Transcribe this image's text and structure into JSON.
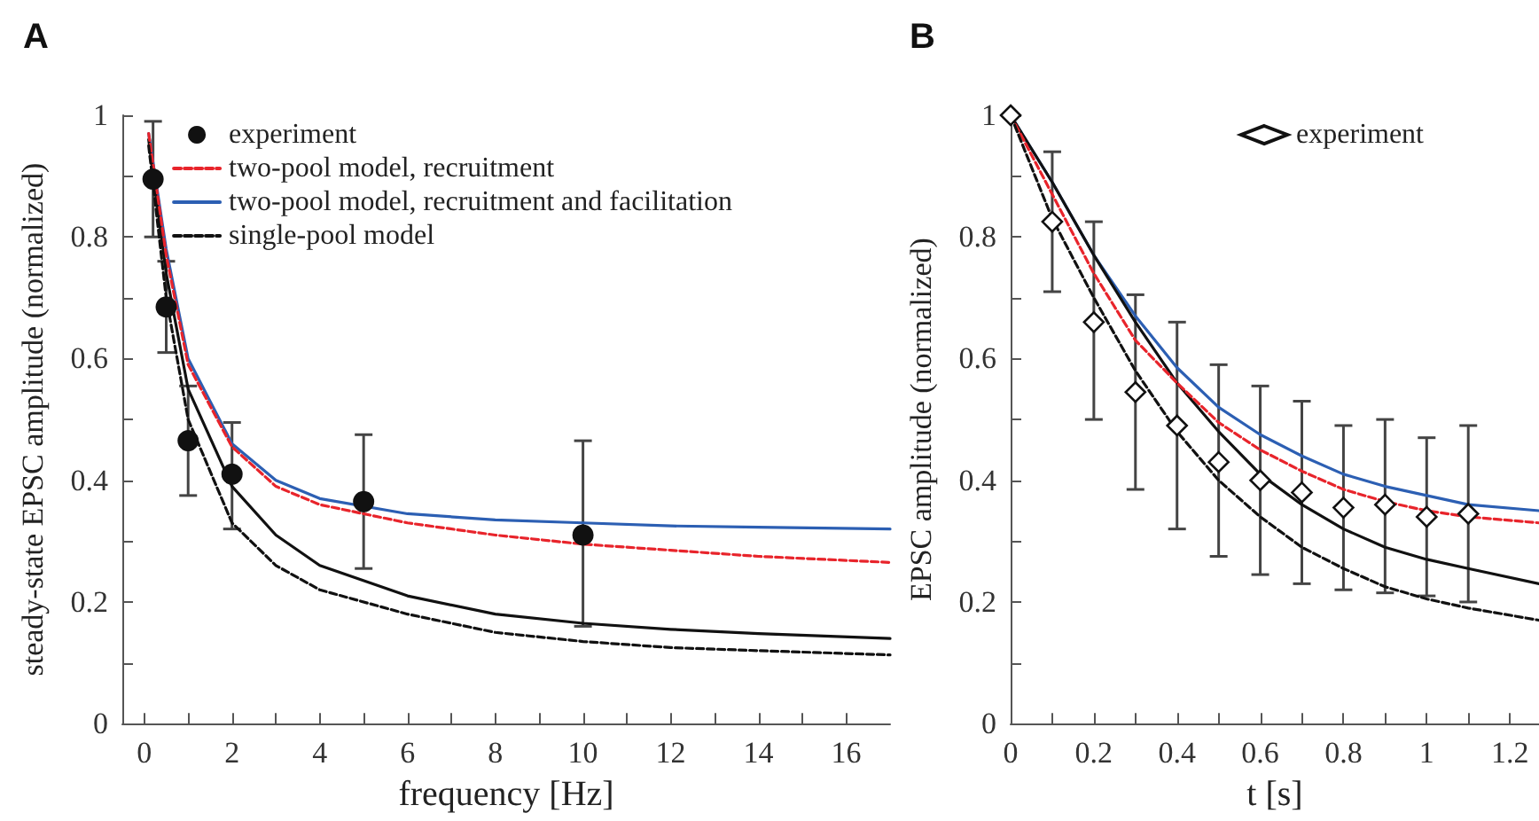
{
  "chart_data": [
    {
      "type": "line",
      "title": "A",
      "xlabel": "frequency [Hz]",
      "ylabel": "steady-state EPSC amplitude (normalized)",
      "xlim": [
        -0.5,
        17
      ],
      "ylim": [
        0,
        1
      ],
      "xticks": [
        0,
        {
          "value": 1,
          "label": null
        },
        2,
        {
          "value": 3,
          "label": null
        },
        4,
        {
          "value": 5,
          "label": null
        },
        6,
        {
          "value": 7,
          "label": null
        },
        8,
        {
          "value": 9,
          "label": null
        },
        10,
        {
          "value": 11,
          "label": null
        },
        12,
        {
          "value": 13,
          "label": null
        },
        14,
        {
          "value": 15,
          "label": null
        },
        16
      ],
      "yticks": [
        0,
        {
          "value": 0.1,
          "label": null
        },
        0.2,
        {
          "value": 0.3,
          "label": null
        },
        0.4,
        {
          "value": 0.5,
          "label": null
        },
        0.6,
        {
          "value": 0.7,
          "label": null
        },
        0.8,
        {
          "value": 0.9,
          "label": null
        },
        1
      ],
      "grid": false,
      "legend": "top",
      "series": [
        {
          "name": "experiment",
          "type": "scatter",
          "marker": "circle",
          "color": "#111111",
          "x": [
            0.2,
            0.5,
            1,
            2,
            5,
            10
          ],
          "values": [
            0.895,
            0.685,
            0.465,
            0.41,
            0.365,
            0.31
          ],
          "errors": [
            [
              0.8,
              0.99
            ],
            [
              0.61,
              0.76
            ],
            [
              0.375,
              0.555
            ],
            [
              0.32,
              0.495
            ],
            [
              0.255,
              0.475
            ],
            [
              0.16,
              0.465
            ]
          ]
        },
        {
          "name": "two-pool model, recruitment",
          "marker": "none",
          "line_style": "dashed",
          "color": "#e8242b",
          "x": [
            0.1,
            0.5,
            1,
            2,
            3,
            4,
            6,
            8,
            10,
            12,
            14,
            17
          ],
          "values": [
            0.97,
            0.77,
            0.59,
            0.455,
            0.39,
            0.36,
            0.33,
            0.31,
            0.295,
            0.285,
            0.275,
            0.265
          ]
        },
        {
          "name": "two-pool model, recruitment and facilitation",
          "marker": "none",
          "line_style": "solid",
          "color": "#2c5fb3",
          "x": [
            0.1,
            0.5,
            1,
            2,
            3,
            4,
            6,
            8,
            10,
            12,
            14,
            17
          ],
          "values": [
            0.97,
            0.78,
            0.6,
            0.46,
            0.4,
            0.37,
            0.345,
            0.335,
            0.33,
            0.325,
            0.323,
            0.32
          ]
        },
        {
          "name": "single-pool model",
          "marker": "none",
          "line_style": "dashed",
          "color": "#111111",
          "x": [
            0.1,
            0.5,
            1,
            2,
            3,
            4,
            6,
            8,
            10,
            12,
            14,
            17
          ],
          "values": [
            0.95,
            0.7,
            0.5,
            0.33,
            0.26,
            0.22,
            0.18,
            0.15,
            0.135,
            0.125,
            0.12,
            0.113
          ]
        },
        {
          "marker": "none",
          "line_style": "solid",
          "color": "#111111",
          "x": [
            0.1,
            0.5,
            1,
            2,
            3,
            4,
            6,
            8,
            10,
            12,
            14,
            17
          ],
          "values": [
            0.96,
            0.74,
            0.55,
            0.39,
            0.31,
            0.26,
            0.21,
            0.18,
            0.165,
            0.155,
            0.148,
            0.14
          ]
        }
      ]
    },
    {
      "type": "line",
      "title": "B",
      "xlabel": "t [s]",
      "ylabel": "EPSC amplitude (normalized)",
      "xlim": [
        0,
        1.27
      ],
      "ylim": [
        0,
        1
      ],
      "xticks": [
        0,
        {
          "value": 0.1,
          "label": null
        },
        0.2,
        {
          "value": 0.3,
          "label": null
        },
        0.4,
        {
          "value": 0.5,
          "label": null
        },
        0.6,
        {
          "value": 0.7,
          "label": null
        },
        0.8,
        {
          "value": 0.9,
          "label": null
        },
        1,
        {
          "value": 1.1,
          "label": null
        },
        1.2
      ],
      "yticks": [
        0,
        {
          "value": 0.1,
          "label": null
        },
        0.2,
        {
          "value": 0.3,
          "label": null
        },
        0.4,
        {
          "value": 0.5,
          "label": null
        },
        0.6,
        {
          "value": 0.7,
          "label": null
        },
        0.8,
        {
          "value": 0.9,
          "label": null
        },
        1
      ],
      "grid": false,
      "legend": "top right",
      "series": [
        {
          "name": "experiment",
          "type": "scatter",
          "marker": "diamond",
          "color": "#111111",
          "x": [
            0,
            0.1,
            0.2,
            0.3,
            0.4,
            0.5,
            0.6,
            0.7,
            0.8,
            0.9,
            1,
            1.1
          ],
          "values": [
            1,
            0.825,
            0.66,
            0.545,
            0.49,
            0.43,
            0.4,
            0.38,
            0.355,
            0.36,
            0.34,
            0.345
          ],
          "errors": [
            null,
            [
              0.71,
              0.94
            ],
            [
              0.5,
              0.825
            ],
            [
              0.385,
              0.705
            ],
            [
              0.32,
              0.66
            ],
            [
              0.275,
              0.59
            ],
            [
              0.245,
              0.555
            ],
            [
              0.23,
              0.53
            ],
            [
              0.22,
              0.49
            ],
            [
              0.215,
              0.5
            ],
            [
              0.21,
              0.47
            ],
            [
              0.2,
              0.49
            ]
          ]
        },
        {
          "marker": "none",
          "line_style": "solid",
          "color": "#2c5fb3",
          "x": [
            0,
            0.1,
            0.2,
            0.3,
            0.4,
            0.5,
            0.6,
            0.7,
            0.8,
            0.9,
            1,
            1.1,
            1.27
          ],
          "values": [
            1,
            0.89,
            0.77,
            0.67,
            0.585,
            0.52,
            0.475,
            0.44,
            0.41,
            0.39,
            0.375,
            0.36,
            0.35
          ]
        },
        {
          "marker": "none",
          "line_style": "dashed",
          "color": "#e8242b",
          "x": [
            0,
            0.1,
            0.2,
            0.3,
            0.4,
            0.5,
            0.6,
            0.7,
            0.8,
            0.9,
            1,
            1.1,
            1.27
          ],
          "values": [
            1,
            0.87,
            0.74,
            0.63,
            0.56,
            0.495,
            0.45,
            0.415,
            0.385,
            0.365,
            0.35,
            0.34,
            0.33
          ]
        },
        {
          "marker": "none",
          "line_style": "solid",
          "color": "#111111",
          "x": [
            0,
            0.1,
            0.2,
            0.3,
            0.4,
            0.5,
            0.6,
            0.7,
            0.8,
            0.9,
            1,
            1.1,
            1.27
          ],
          "values": [
            1,
            0.89,
            0.77,
            0.66,
            0.56,
            0.48,
            0.41,
            0.36,
            0.32,
            0.29,
            0.27,
            0.255,
            0.23
          ]
        },
        {
          "marker": "none",
          "line_style": "dashed",
          "color": "#111111",
          "x": [
            0,
            0.1,
            0.2,
            0.3,
            0.4,
            0.5,
            0.6,
            0.7,
            0.8,
            0.9,
            1,
            1.1,
            1.27
          ],
          "values": [
            1,
            0.83,
            0.7,
            0.58,
            0.48,
            0.4,
            0.34,
            0.29,
            0.255,
            0.225,
            0.205,
            0.19,
            0.17
          ]
        }
      ]
    }
  ]
}
